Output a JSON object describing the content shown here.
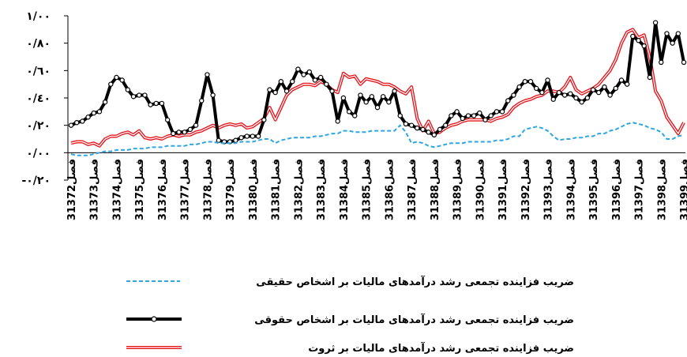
{
  "chart_data": {
    "type": "line",
    "categories": [
      "3فصل1372",
      null,
      null,
      null,
      "3فصل1373",
      null,
      null,
      null,
      "3فصل1374",
      null,
      null,
      null,
      "3فصل1375",
      null,
      null,
      null,
      "3فصل1376",
      null,
      null,
      null,
      "3فصل1377",
      null,
      null,
      null,
      "3فصل1378",
      null,
      null,
      null,
      "3فصل1379",
      null,
      null,
      null,
      "3فصل1380",
      null,
      null,
      null,
      "3فصل1381",
      null,
      null,
      null,
      "3فصل1382",
      null,
      null,
      null,
      "3فصل1383",
      null,
      null,
      null,
      "3فصل1384",
      null,
      null,
      null,
      "3فصل1385",
      null,
      null,
      null,
      "3فصل1386",
      null,
      null,
      null,
      "3فصل1387",
      null,
      null,
      null,
      "3فصل1388",
      null,
      null,
      null,
      "3فصل1389",
      null,
      null,
      null,
      "3فصل1390",
      null,
      null,
      null,
      "3فصل1391",
      null,
      null,
      null,
      "3فصل1392",
      null,
      null,
      null,
      "3فصل1393",
      null,
      null,
      null,
      "3فصل1394",
      null,
      null,
      null,
      "3فصل1395",
      null,
      null,
      null,
      "3فصل1396",
      null,
      null,
      null,
      "3فصل1397",
      null,
      null,
      null,
      "3فصل1398",
      null,
      null,
      null,
      "3فصل1399"
    ],
    "series": [
      {
        "name": "ضریب فزاینده تجمعی رشد درآمدهای مالیات بر اشخاص حقیقی",
        "color": "#2ea6e0",
        "style": "dashed",
        "values": [
          -0.01,
          -0.02,
          -0.02,
          -0.02,
          -0.01,
          0.0,
          0.01,
          0.01,
          0.02,
          0.02,
          0.02,
          0.03,
          0.03,
          0.03,
          0.04,
          0.04,
          0.04,
          0.05,
          0.05,
          0.05,
          0.05,
          0.06,
          0.06,
          0.07,
          0.08,
          0.08,
          0.07,
          0.07,
          0.07,
          0.07,
          0.08,
          0.08,
          0.08,
          0.09,
          0.1,
          0.1,
          0.07,
          0.09,
          0.1,
          0.11,
          0.11,
          0.11,
          0.11,
          0.12,
          0.12,
          0.13,
          0.14,
          0.14,
          0.16,
          0.16,
          0.15,
          0.15,
          0.15,
          0.16,
          0.16,
          0.16,
          0.16,
          0.16,
          0.2,
          0.15,
          0.07,
          0.08,
          0.07,
          0.05,
          0.04,
          0.05,
          0.06,
          0.07,
          0.07,
          0.07,
          0.08,
          0.08,
          0.08,
          0.08,
          0.08,
          0.09,
          0.09,
          0.1,
          0.12,
          0.12,
          0.17,
          0.18,
          0.19,
          0.18,
          0.16,
          0.12,
          0.09,
          0.1,
          0.1,
          0.11,
          0.11,
          0.12,
          0.12,
          0.14,
          0.14,
          0.16,
          0.17,
          0.19,
          0.21,
          0.22,
          0.21,
          0.2,
          0.18,
          0.17,
          0.15,
          0.1,
          0.1,
          0.12,
          0.13
        ]
      },
      {
        "name": "ضریب فزاینده تجمعی رشد درآمدهای مالیات بر اشخاص حقوقی",
        "color": "#000000",
        "style": "markers",
        "values": [
          0.2,
          0.22,
          0.23,
          0.26,
          0.29,
          0.3,
          0.37,
          0.5,
          0.55,
          0.53,
          0.46,
          0.41,
          0.42,
          0.42,
          0.35,
          0.36,
          0.36,
          0.24,
          0.14,
          0.15,
          0.15,
          0.17,
          0.2,
          0.38,
          0.57,
          0.42,
          0.09,
          0.08,
          0.08,
          0.09,
          0.11,
          0.12,
          0.12,
          0.12,
          0.24,
          0.46,
          0.44,
          0.52,
          0.45,
          0.52,
          0.61,
          0.57,
          0.59,
          0.53,
          0.55,
          0.5,
          0.45,
          0.23,
          0.4,
          0.3,
          0.27,
          0.42,
          0.37,
          0.41,
          0.33,
          0.41,
          0.37,
          0.45,
          0.27,
          0.21,
          0.2,
          0.18,
          0.17,
          0.15,
          0.13,
          0.17,
          0.2,
          0.27,
          0.3,
          0.25,
          0.27,
          0.27,
          0.29,
          0.24,
          0.27,
          0.3,
          0.3,
          0.38,
          0.42,
          0.48,
          0.52,
          0.52,
          0.47,
          0.44,
          0.53,
          0.39,
          0.44,
          0.42,
          0.43,
          0.4,
          0.37,
          0.4,
          0.46,
          0.44,
          0.48,
          0.42,
          0.47,
          0.53,
          0.5,
          0.85,
          0.82,
          0.78,
          0.55,
          0.95,
          0.66,
          0.87,
          0.8,
          0.87,
          0.66
        ]
      },
      {
        "name": "ضریب فزاینده تجمعی رشد درآمدهای مالیات بر ثروت",
        "color": "#e8141b",
        "style": "double",
        "values": [
          0.07,
          0.08,
          0.08,
          0.06,
          0.07,
          0.05,
          0.1,
          0.12,
          0.12,
          0.14,
          0.15,
          0.13,
          0.16,
          0.11,
          0.1,
          0.11,
          0.1,
          0.12,
          0.13,
          0.12,
          0.13,
          0.13,
          0.15,
          0.16,
          0.18,
          0.2,
          0.18,
          0.2,
          0.21,
          0.2,
          0.21,
          0.18,
          0.19,
          0.22,
          0.25,
          0.33,
          0.24,
          0.33,
          0.42,
          0.46,
          0.48,
          0.5,
          0.5,
          0.49,
          0.52,
          0.5,
          0.46,
          0.44,
          0.58,
          0.55,
          0.56,
          0.5,
          0.54,
          0.53,
          0.52,
          0.5,
          0.5,
          0.48,
          0.45,
          0.43,
          0.48,
          0.25,
          0.16,
          0.23,
          0.14,
          0.15,
          0.18,
          0.2,
          0.21,
          0.23,
          0.24,
          0.24,
          0.24,
          0.24,
          0.23,
          0.25,
          0.26,
          0.28,
          0.33,
          0.36,
          0.38,
          0.39,
          0.41,
          0.42,
          0.45,
          0.45,
          0.44,
          0.48,
          0.55,
          0.46,
          0.43,
          0.45,
          0.47,
          0.5,
          0.55,
          0.6,
          0.68,
          0.8,
          0.88,
          0.9,
          0.84,
          0.86,
          0.7,
          0.45,
          0.38,
          0.26,
          0.2,
          0.14,
          0.22
        ]
      }
    ],
    "ylim": [
      -0.2,
      1.0
    ],
    "yticks": [
      {
        "value": -0.2,
        "label": "-٠/٢٠"
      },
      {
        "value": 0,
        "label": "٠/٠٠"
      },
      {
        "value": 0.2,
        "label": "٠/٢٠"
      },
      {
        "value": 0.4,
        "label": "٠/٤٠"
      },
      {
        "value": 0.6,
        "label": "٠/٦٠"
      },
      {
        "value": 0.8,
        "label": "٠/٨٠"
      },
      {
        "value": 1.0,
        "label": "١/٠٠"
      }
    ],
    "grid": false,
    "legend": "bottom"
  }
}
